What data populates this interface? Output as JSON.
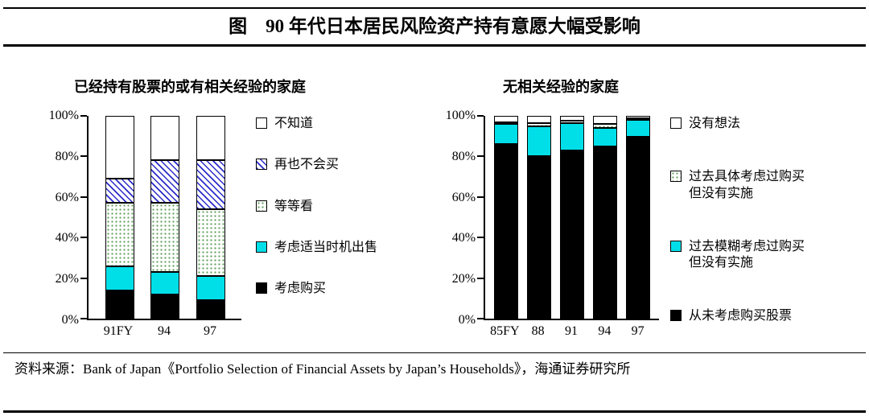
{
  "header": {
    "title": "图    90 年代日本居民风险资产持有意愿大幅受影响"
  },
  "source": {
    "text": "资料来源：Bank of Japan《Portfolio Selection of Financial Assets by Japan’s Households》，海通证券研究所"
  },
  "colors": {
    "cyan": "#00DFE8",
    "hatch_blue": "#2A2AC8",
    "dot_green": "#5FA05A",
    "axis_black": "#000000"
  },
  "chart_data": [
    {
      "type": "bar",
      "stacked": true,
      "title": "已经持有股票的或有相关经验的家庭",
      "categories": [
        "91FY",
        "94",
        "97"
      ],
      "ylim": [
        0,
        100
      ],
      "yticks": [
        "0%",
        "20%",
        "40%",
        "60%",
        "80%",
        "100%"
      ],
      "grid": false,
      "legend_position": "right",
      "series": [
        {
          "name": "考虑购买",
          "style": "black",
          "values": [
            14,
            12,
            9
          ]
        },
        {
          "name": "考虑适当时机出售",
          "style": "cyan",
          "values": [
            12,
            11,
            12
          ]
        },
        {
          "name": "等等看",
          "style": "dotted",
          "values": [
            31,
            34,
            33
          ]
        },
        {
          "name": "再也不会买",
          "style": "hatched",
          "values": [
            12,
            21,
            24
          ]
        },
        {
          "name": "不知道",
          "style": "white",
          "values": [
            31,
            22,
            22
          ]
        }
      ]
    },
    {
      "type": "bar",
      "stacked": true,
      "title": "无相关经验的家庭",
      "categories": [
        "85FY",
        "88",
        "91",
        "94",
        "97"
      ],
      "ylim": [
        0,
        100
      ],
      "yticks": [
        "0%",
        "20%",
        "40%",
        "60%",
        "80%",
        "100%"
      ],
      "grid": false,
      "legend_position": "right",
      "series": [
        {
          "name": "从未考虑购买股票",
          "style": "black",
          "values": [
            86,
            80,
            83,
            85,
            90
          ]
        },
        {
          "name": "过去模糊考虑过购买\n但没有实施",
          "style": "cyan",
          "values": [
            10,
            15,
            13.5,
            9,
            8.5
          ]
        },
        {
          "name": "过去具体考虑过购买\n但没有实施",
          "style": "dotted",
          "values": [
            1,
            1.5,
            1,
            2,
            0.5
          ]
        },
        {
          "name": "没有想法",
          "style": "white",
          "values": [
            3,
            3.5,
            2.5,
            4,
            1
          ]
        }
      ]
    }
  ]
}
